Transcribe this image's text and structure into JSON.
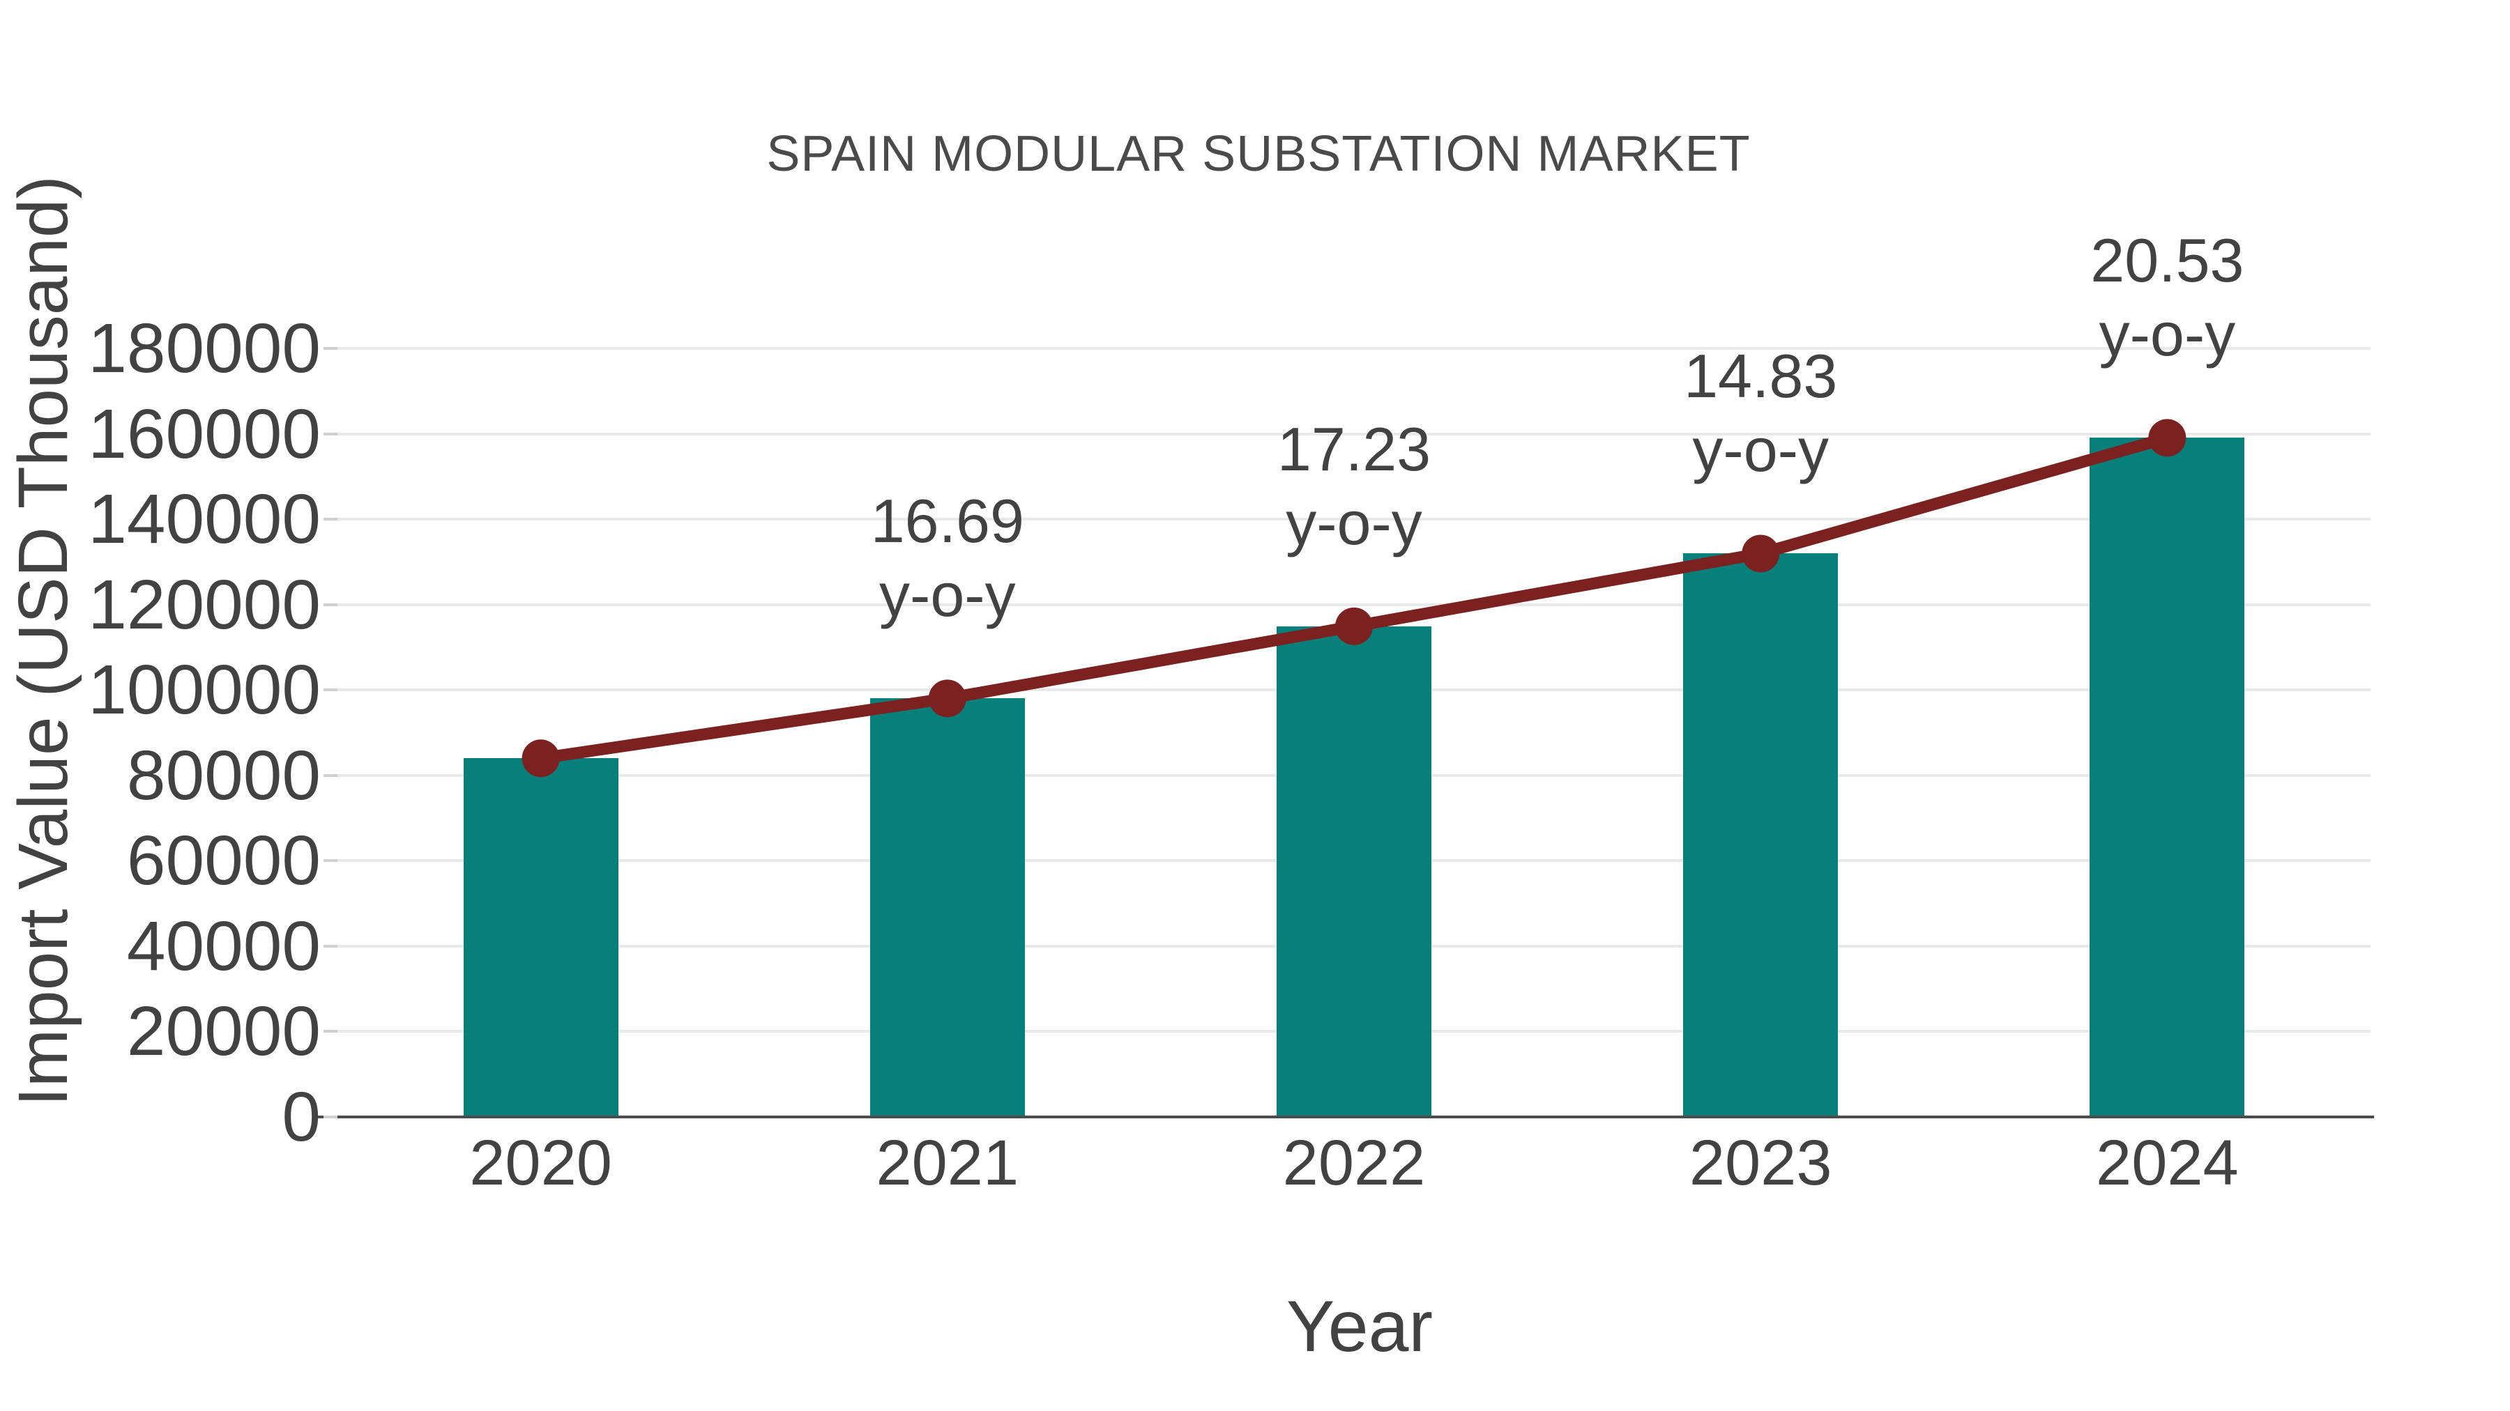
{
  "figure": {
    "background": "#ffffff"
  },
  "chart_data": {
    "type": "bar",
    "title": "SPAIN MODULAR SUBSTATION MARKET",
    "xlabel": "Year",
    "ylabel": "Import Value (USD Thousand)",
    "categories": [
      "2020",
      "2021",
      "2022",
      "2023",
      "2024"
    ],
    "series": [
      {
        "name": "Import Value bars",
        "type": "bar",
        "color": "#07807c",
        "values": [
          84000,
          98020,
          114909,
          131950,
          159041
        ]
      },
      {
        "name": "Import Value trend line",
        "type": "line",
        "color": "#7b2120",
        "values": [
          84000,
          98020,
          114909,
          131950,
          159041
        ]
      }
    ],
    "annotations": [
      {
        "category": "2021",
        "line1": "16.69",
        "line2": "y-o-y"
      },
      {
        "category": "2022",
        "line1": "17.23",
        "line2": "y-o-y"
      },
      {
        "category": "2023",
        "line1": "14.83",
        "line2": "y-o-y"
      },
      {
        "category": "2024",
        "line1": "20.53",
        "line2": "y-o-y"
      }
    ],
    "ylim": [
      0,
      180000
    ],
    "y_ticks": [
      0,
      20000,
      40000,
      60000,
      80000,
      100000,
      120000,
      140000,
      160000,
      180000
    ],
    "grid": "horizontal",
    "legend": "none",
    "colors": {
      "bar": "#07807c",
      "line": "#7b2120",
      "text": "#424242",
      "gridline": "#e9e9e9",
      "axis_line": "#4c4c4c",
      "tick_dash": "#d0d0d0"
    }
  }
}
